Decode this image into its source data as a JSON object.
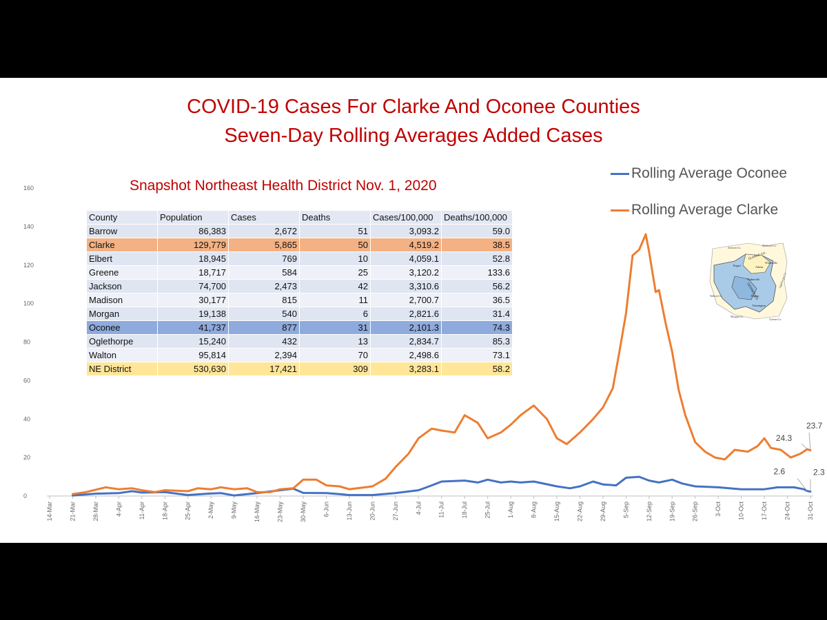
{
  "slide": {
    "title_line1": "COVID-19 Cases For Clarke And Oconee Counties",
    "title_line2": "Seven-Day Rolling Averages Added Cases",
    "snapshot_title": "Snapshot Northeast Health District Nov. 1, 2020"
  },
  "legend": {
    "oconee": "Rolling Average Oconee",
    "clarke": "Rolling Average Clarke"
  },
  "colors": {
    "oconee": "#4472c4",
    "clarke": "#ed7d31",
    "title": "#c00000"
  },
  "table": {
    "headers": [
      "County",
      "Population",
      "Cases",
      "Deaths",
      "Cases/100,000",
      "Deaths/100,000"
    ],
    "rows": [
      [
        "Barrow",
        "86,383",
        "2,672",
        "51",
        "3,093.2",
        "59.0"
      ],
      [
        "Clarke",
        "129,779",
        "5,865",
        "50",
        "4,519.2",
        "38.5"
      ],
      [
        "Elbert",
        "18,945",
        "769",
        "10",
        "4,059.1",
        "52.8"
      ],
      [
        "Greene",
        "18,717",
        "584",
        "25",
        "3,120.2",
        "133.6"
      ],
      [
        "Jackson",
        "74,700",
        "2,473",
        "42",
        "3,310.6",
        "56.2"
      ],
      [
        "Madison",
        "30,177",
        "815",
        "11",
        "2,700.7",
        "36.5"
      ],
      [
        "Morgan",
        "19,138",
        "540",
        "6",
        "2,821.6",
        "31.4"
      ],
      [
        "Oconee",
        "41,737",
        "877",
        "31",
        "2,101.3",
        "74.3"
      ],
      [
        "Oglethorpe",
        "15,240",
        "432",
        "13",
        "2,834.7",
        "85.3"
      ],
      [
        "Walton",
        "95,814",
        "2,394",
        "70",
        "2,498.6",
        "73.1"
      ],
      [
        "NE District",
        "530,630",
        "17,421",
        "309",
        "3,283.1",
        "58.2"
      ]
    ]
  },
  "map_labels": [
    "Jackson Co.",
    "Madison Co.",
    "CLARKE CO.",
    "OCONEE CO.",
    "Bogart",
    "Winterville",
    "Watkinsville",
    "Bishop",
    "Walton Co.",
    "Morgan Co.",
    "Greene Co.",
    "Oglethorpe Co.",
    "Farmington",
    "Athens"
  ],
  "chart_data": {
    "type": "line",
    "x_start": "2020-03-14",
    "x_end": "2020-10-31",
    "ylim": [
      0,
      160
    ],
    "yticks": [
      0,
      20,
      40,
      60,
      80,
      100,
      120,
      140,
      160
    ],
    "xtick_labels": [
      "14-Mar",
      "21-Mar",
      "28-Mar",
      "4-Apr",
      "11-Apr",
      "18-Apr",
      "25-Apr",
      "2-May",
      "9-May",
      "16-May",
      "23-May",
      "30-May",
      "6-Jun",
      "13-Jun",
      "20-Jun",
      "27-Jun",
      "4-Jul",
      "11-Jul",
      "18-Jul",
      "25-Jul",
      "1-Aug",
      "8-Aug",
      "15-Aug",
      "22-Aug",
      "29-Aug",
      "5-Sep",
      "12-Sep",
      "19-Sep",
      "26-Sep",
      "3-Oct",
      "10-Oct",
      "17-Oct",
      "24-Oct",
      "31-Oct"
    ],
    "series": [
      {
        "name": "Rolling Average Oconee",
        "color": "#4472c4",
        "points": [
          [
            "2020-03-21",
            0.3
          ],
          [
            "2020-03-28",
            1.2
          ],
          [
            "2020-04-04",
            1.5
          ],
          [
            "2020-04-08",
            2.5
          ],
          [
            "2020-04-11",
            1.8
          ],
          [
            "2020-04-18",
            2.0
          ],
          [
            "2020-04-25",
            0.5
          ],
          [
            "2020-05-01",
            1.2
          ],
          [
            "2020-05-05",
            1.5
          ],
          [
            "2020-05-09",
            0.3
          ],
          [
            "2020-05-16",
            1.5
          ],
          [
            "2020-05-23",
            3.0
          ],
          [
            "2020-05-27",
            3.8
          ],
          [
            "2020-05-30",
            1.6
          ],
          [
            "2020-06-06",
            1.5
          ],
          [
            "2020-06-10",
            1.0
          ],
          [
            "2020-06-13",
            0.5
          ],
          [
            "2020-06-20",
            0.5
          ],
          [
            "2020-06-27",
            1.5
          ],
          [
            "2020-07-04",
            3.0
          ],
          [
            "2020-07-08",
            5.5
          ],
          [
            "2020-07-11",
            7.5
          ],
          [
            "2020-07-18",
            8.0
          ],
          [
            "2020-07-22",
            7.0
          ],
          [
            "2020-07-25",
            8.5
          ],
          [
            "2020-07-29",
            7.0
          ],
          [
            "2020-08-01",
            7.5
          ],
          [
            "2020-08-04",
            7.0
          ],
          [
            "2020-08-08",
            7.5
          ],
          [
            "2020-08-15",
            5.0
          ],
          [
            "2020-08-19",
            4.0
          ],
          [
            "2020-08-22",
            5.0
          ],
          [
            "2020-08-26",
            7.5
          ],
          [
            "2020-08-29",
            6.0
          ],
          [
            "2020-09-02",
            5.5
          ],
          [
            "2020-09-05",
            9.5
          ],
          [
            "2020-09-09",
            10.0
          ],
          [
            "2020-09-12",
            8.0
          ],
          [
            "2020-09-15",
            7.0
          ],
          [
            "2020-09-19",
            8.5
          ],
          [
            "2020-09-22",
            6.5
          ],
          [
            "2020-09-26",
            5.0
          ],
          [
            "2020-10-03",
            4.5
          ],
          [
            "2020-10-10",
            3.5
          ],
          [
            "2020-10-17",
            3.5
          ],
          [
            "2020-10-21",
            4.5
          ],
          [
            "2020-10-26",
            4.5
          ],
          [
            "2020-10-29",
            3.5
          ],
          [
            "2020-10-30",
            2.6
          ],
          [
            "2020-10-31",
            2.3
          ]
        ]
      },
      {
        "name": "Rolling Average Clarke",
        "color": "#ed7d31",
        "points": [
          [
            "2020-03-21",
            1.0
          ],
          [
            "2020-03-25",
            2.0
          ],
          [
            "2020-03-31",
            4.5
          ],
          [
            "2020-04-04",
            3.5
          ],
          [
            "2020-04-08",
            4.0
          ],
          [
            "2020-04-11",
            3.0
          ],
          [
            "2020-04-15",
            2.0
          ],
          [
            "2020-04-18",
            3.0
          ],
          [
            "2020-04-25",
            2.5
          ],
          [
            "2020-04-28",
            4.0
          ],
          [
            "2020-05-02",
            3.5
          ],
          [
            "2020-05-05",
            4.5
          ],
          [
            "2020-05-09",
            3.5
          ],
          [
            "2020-05-13",
            4.0
          ],
          [
            "2020-05-16",
            2.0
          ],
          [
            "2020-05-20",
            2.0
          ],
          [
            "2020-05-23",
            3.5
          ],
          [
            "2020-05-27",
            4.0
          ],
          [
            "2020-05-30",
            8.5
          ],
          [
            "2020-06-03",
            8.5
          ],
          [
            "2020-06-06",
            5.5
          ],
          [
            "2020-06-10",
            5.0
          ],
          [
            "2020-06-13",
            3.5
          ],
          [
            "2020-06-20",
            5.0
          ],
          [
            "2020-06-24",
            9.0
          ],
          [
            "2020-06-27",
            15.0
          ],
          [
            "2020-07-01",
            22.0
          ],
          [
            "2020-07-04",
            30.0
          ],
          [
            "2020-07-08",
            35.0
          ],
          [
            "2020-07-11",
            34.0
          ],
          [
            "2020-07-15",
            33.0
          ],
          [
            "2020-07-18",
            42.0
          ],
          [
            "2020-07-22",
            38.0
          ],
          [
            "2020-07-25",
            30.0
          ],
          [
            "2020-07-29",
            33.0
          ],
          [
            "2020-08-01",
            37.0
          ],
          [
            "2020-08-04",
            42.0
          ],
          [
            "2020-08-08",
            47.0
          ],
          [
            "2020-08-12",
            40.0
          ],
          [
            "2020-08-15",
            30.0
          ],
          [
            "2020-08-18",
            27.0
          ],
          [
            "2020-08-22",
            33.0
          ],
          [
            "2020-08-26",
            40.0
          ],
          [
            "2020-08-29",
            46.0
          ],
          [
            "2020-09-01",
            56.0
          ],
          [
            "2020-09-03",
            75.0
          ],
          [
            "2020-09-05",
            95.0
          ],
          [
            "2020-09-07",
            125.0
          ],
          [
            "2020-09-09",
            128.0
          ],
          [
            "2020-09-11",
            136.0
          ],
          [
            "2020-09-12",
            127.0
          ],
          [
            "2020-09-14",
            106.0
          ],
          [
            "2020-09-15",
            107.0
          ],
          [
            "2020-09-17",
            90.0
          ],
          [
            "2020-09-19",
            75.0
          ],
          [
            "2020-09-21",
            55.0
          ],
          [
            "2020-09-23",
            42.0
          ],
          [
            "2020-09-26",
            28.0
          ],
          [
            "2020-09-29",
            23.0
          ],
          [
            "2020-10-02",
            20.0
          ],
          [
            "2020-10-05",
            19.0
          ],
          [
            "2020-10-08",
            24.0
          ],
          [
            "2020-10-12",
            23.0
          ],
          [
            "2020-10-15",
            26.0
          ],
          [
            "2020-10-17",
            30.0
          ],
          [
            "2020-10-19",
            25.0
          ],
          [
            "2020-10-22",
            24.0
          ],
          [
            "2020-10-25",
            20.0
          ],
          [
            "2020-10-28",
            22.0
          ],
          [
            "2020-10-30",
            24.3
          ],
          [
            "2020-10-31",
            23.7
          ]
        ]
      }
    ],
    "annotations": [
      {
        "series": "Rolling Average Clarke",
        "x": "2020-10-31",
        "text": "23.7"
      },
      {
        "series": "Rolling Average Clarke",
        "x": "2020-10-30",
        "text": "24.3"
      },
      {
        "series": "Rolling Average Oconee",
        "x": "2020-10-30",
        "text": "2.6"
      },
      {
        "series": "Rolling Average Oconee",
        "x": "2020-10-31",
        "text": "2.3"
      }
    ]
  }
}
